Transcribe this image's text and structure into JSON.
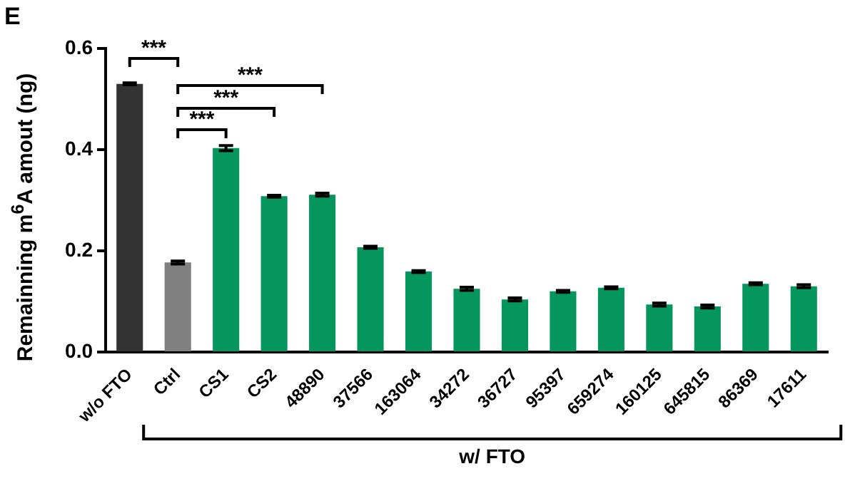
{
  "chart_data": {
    "type": "bar",
    "ylabel": "Remainning m$^{6}$A amout (ng)",
    "categories": [
      "w/o FTO",
      "Ctrl",
      "CS1",
      "CS2",
      "48890",
      "37566",
      "163064",
      "34272",
      "36727",
      "95397",
      "659274",
      "160125",
      "645815",
      "86369",
      "17611"
    ],
    "values": [
      0.53,
      0.177,
      0.403,
      0.308,
      0.311,
      0.207,
      0.159,
      0.125,
      0.104,
      0.12,
      0.127,
      0.094,
      0.09,
      0.135,
      0.13
    ],
    "errors": [
      0.002,
      0.003,
      0.005,
      0.002,
      0.003,
      0.002,
      0.002,
      0.003,
      0.003,
      0.002,
      0.002,
      0.003,
      0.003,
      0.002,
      0.003
    ],
    "colors": [
      "#333333",
      "#808080",
      "#05965e",
      "#05965e",
      "#05965e",
      "#05965e",
      "#05965e",
      "#05965e",
      "#05965e",
      "#05965e",
      "#05965e",
      "#05965e",
      "#05965e",
      "#05965e",
      "#05965e"
    ],
    "ylim": [
      0,
      0.6
    ],
    "yticks": [
      {
        "value": 0,
        "label": "0.0"
      },
      {
        "value": 0.2,
        "label": "0.2"
      },
      {
        "value": 0.4,
        "label": "0.4"
      },
      {
        "value": 0.6,
        "label": "0.6"
      }
    ],
    "grid": false,
    "legend": false,
    "annotations": [
      "E",
      "***",
      "***",
      "***",
      "***",
      "w/ FTO"
    ]
  }
}
